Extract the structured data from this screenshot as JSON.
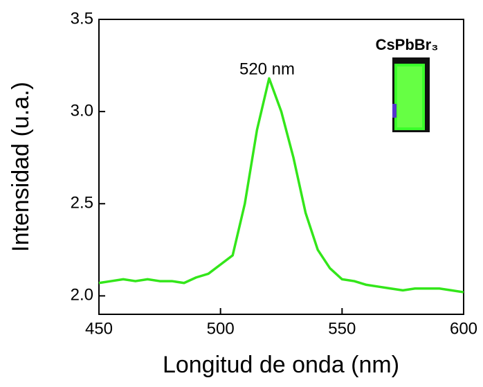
{
  "chart_data": {
    "type": "line",
    "x_label": "Longitud de onda (nm)",
    "y_label": "Intensidad (u.a.)",
    "annotations": [
      "520 nm",
      "CsPbBr₃"
    ],
    "x": [
      450,
      455,
      460,
      465,
      470,
      475,
      480,
      485,
      490,
      495,
      500,
      505,
      510,
      515,
      520,
      525,
      530,
      535,
      540,
      545,
      550,
      555,
      560,
      565,
      570,
      575,
      580,
      585,
      590,
      595,
      600
    ],
    "series": [
      {
        "color": "#33e61a",
        "values": [
          2.07,
          2.08,
          2.09,
          2.08,
          2.09,
          2.08,
          2.08,
          2.07,
          2.1,
          2.12,
          2.17,
          2.22,
          2.5,
          2.9,
          3.18,
          3.0,
          2.75,
          2.45,
          2.25,
          2.15,
          2.09,
          2.08,
          2.06,
          2.05,
          2.04,
          2.03,
          2.04,
          2.04,
          2.04,
          2.03,
          2.02
        ]
      }
    ],
    "xlim": [
      450,
      600
    ],
    "xticks": [
      450,
      500,
      550,
      600
    ],
    "ylim": [
      1.9,
      3.5
    ],
    "yticks": [
      {
        "value": 2.0,
        "label": "2.0"
      },
      2.5,
      {
        "value": 3.0,
        "label": "3.0"
      },
      3.5
    ]
  }
}
